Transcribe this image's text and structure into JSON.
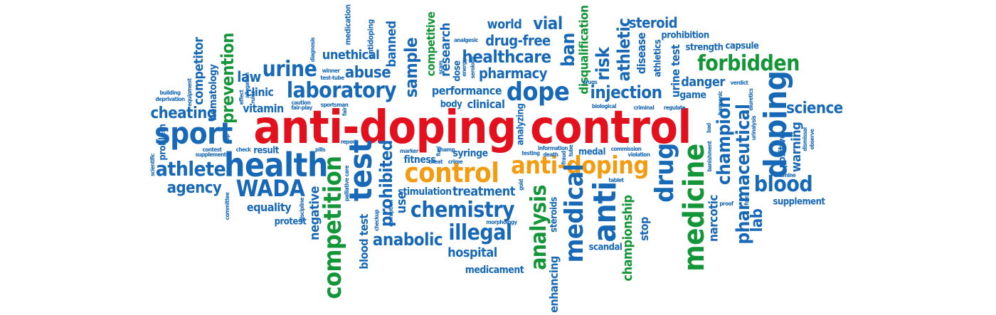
{
  "colors": {
    "blue": "#1769b8",
    "green": "#139637",
    "orange": "#f39c12",
    "red": "#e3101d"
  },
  "words": {
    "anti_doping_control": "anti-doping control",
    "control": "control",
    "anti_doping": "anti-doping",
    "health": "health",
    "wada": "WADA",
    "athlete": "athlete",
    "agency": "agency",
    "equality": "equality",
    "protest": "protest",
    "sport": "sport",
    "cheating": "cheating",
    "vitamin": "vitamin",
    "clinic": "clinic",
    "law": "law",
    "urine": "urine",
    "laboratory": "laboratory",
    "unethical": "unethical",
    "abuse": "abuse",
    "banned": "banned",
    "sample": "sample",
    "research": "research",
    "competitive": "competitive",
    "performance": "performance",
    "body": "body",
    "clinical": "clinical",
    "world": "world",
    "vial": "vial",
    "drug_free": "drug-free",
    "healthcare": "healthcare",
    "pharmacy": "pharmacy",
    "dope": "dope",
    "ban": "ban",
    "disqualification": "disqualification",
    "risk": "risk",
    "injection": "injection",
    "athletic": "athletic",
    "steroid": "steroid",
    "prohibition": "prohibition",
    "strength": "strength",
    "capsule": "capsule",
    "forbidden": "forbidden",
    "danger": "danger",
    "game": "game",
    "science": "science",
    "doping": "doping",
    "blood": "blood",
    "supplement": "supplement",
    "warning": "warning",
    "positive": "positive",
    "champion": "champion",
    "pharmaceutical": "pharmaceutical",
    "lab": "lab",
    "narcotic": "narcotic",
    "medicine": "medicine",
    "drug": "drug",
    "anti": "anti",
    "medical": "medical",
    "analysis": "analysis",
    "championship": "championship",
    "stop": "stop",
    "scandal": "scandal",
    "enhancing": "enhancing",
    "steroids": "steroids",
    "medal": "medal",
    "chemistry": "chemistry",
    "illegal": "illegal",
    "hospital": "hospital",
    "medicament": "medicament",
    "treatment": "treatment",
    "stimulation": "stimulation",
    "fitness": "fitness",
    "syringe": "syringe",
    "use": "use",
    "prohibited": "prohibited",
    "anabolic": "anabolic",
    "test": "test",
    "competition": "competition",
    "negative": "negative",
    "blood_test": "blood test",
    "result": "result",
    "problem": "problem",
    "prevention": "prevention",
    "competitor": "competitor",
    "hematology": "hematology",
    "medication": "medication",
    "antidoping": "antidoping",
    "urine_test": "urine test",
    "disease": "disease",
    "athletics": "athletics",
    "analyzing": "analyzing",
    "small": {
      "winner": "winner",
      "test_tube": "test-tube",
      "effect": "effect",
      "caution": "caution",
      "fair_play": "fair-play",
      "sportsman": "sportsman",
      "fair": "fair",
      "pills": "pills",
      "check": "check",
      "top": "top",
      "contest": "contest",
      "supplements": "supplements",
      "committee": "committee",
      "discipline": "discipline",
      "palliative_care": "palliative care",
      "checkup": "checkup",
      "corruption": "corruption",
      "marker": "marker",
      "cheat": "cheat",
      "crime": "crime",
      "champ": "champ",
      "report": "report",
      "fuel": "fuel",
      "gold": "gold",
      "morphology": "morphology",
      "testing": "testing",
      "information": "information",
      "death": "death",
      "fraud": "fraud",
      "tube": "tube",
      "commission": "commission",
      "violation": "violation",
      "tablet": "tablet",
      "biological": "biological",
      "criminal": "criminal",
      "regulate": "regulate",
      "drugs": "drugs",
      "analgesic": "analgesic",
      "energy": "energy",
      "scam": "scam",
      "serology": "serology",
      "dose": "dose",
      "verdict": "verdict",
      "diuretics": "diuretics",
      "harmonic": "harmonic",
      "bad": "bad",
      "banishment": "banishment",
      "proof": "proof",
      "force": "force",
      "examine": "examine",
      "urinalysis": "urinalysis",
      "dismissal": "dismissal",
      "observe": "observe",
      "building": "building",
      "deprivation": "deprivation",
      "equipment": "equipment",
      "scientific": "scientific",
      "diagnosis": "diagnosis",
      "allegation": "allegation",
      "rules": "rules"
    }
  }
}
